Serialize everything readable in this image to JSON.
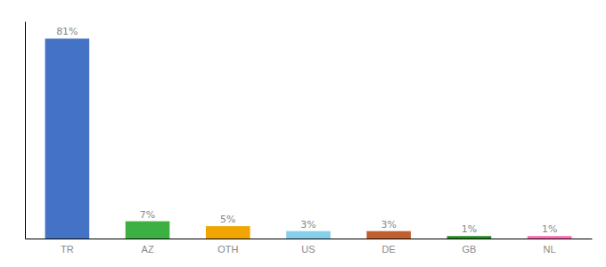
{
  "chart_data": {
    "type": "bar",
    "categories": [
      "TR",
      "AZ",
      "OTH",
      "US",
      "DE",
      "GB",
      "NL"
    ],
    "values": [
      81,
      7,
      5,
      3,
      3,
      1,
      1
    ],
    "value_labels": [
      "81%",
      "7%",
      "5%",
      "3%",
      "3%",
      "1%",
      "1%"
    ],
    "data_labels": true,
    "colors": [
      "#4472C4",
      "#3CB043",
      "#F0A500",
      "#87CEEB",
      "#C06030",
      "#228B22",
      "#FF69B4"
    ],
    "ylim": [
      0,
      88
    ],
    "grid": false,
    "tick_labels": "x"
  }
}
